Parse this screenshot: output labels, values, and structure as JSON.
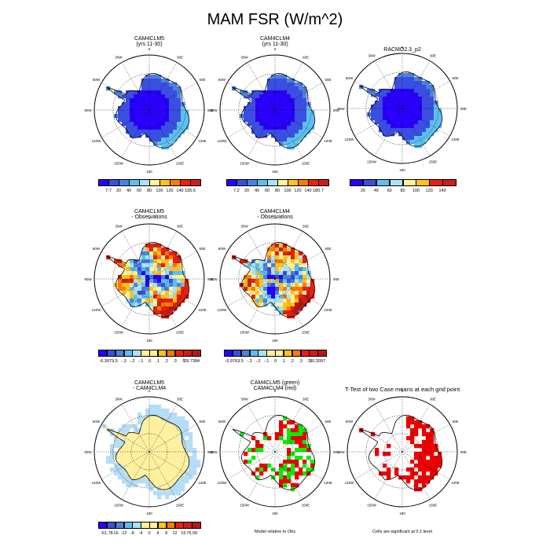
{
  "title": "MAM FSR (W/m^2)",
  "colors": {
    "abs_scale": [
      "#2a00ff",
      "#3a4ee0",
      "#4a82e0",
      "#5cc0ee",
      "#a8e2f8",
      "#fff099",
      "#ffc020",
      "#ff7a00",
      "#e82010",
      "#c81e1e"
    ],
    "diff_scale": [
      "#2a00ff",
      "#3a4ee0",
      "#4a82e0",
      "#5cc0ee",
      "#a8e2f8",
      "#fff099",
      "#ffc020",
      "#ff7a00",
      "#e82010",
      "#c81e1e",
      "#b51818"
    ],
    "cam5": "#00ee00",
    "cam4": "#ee0000",
    "land": "#fff0a0",
    "ocean_diff": "#b5ddf6"
  },
  "lon_labels": [
    "0",
    "30E",
    "60E",
    "90E",
    "120E",
    "150E",
    "180",
    "150W",
    "120W",
    "90W",
    "60W",
    "30W"
  ],
  "panels": [
    {
      "id": "p1",
      "title1": "CAM4CLM5",
      "title2": "(yrs 11-30)",
      "kind": "abs",
      "variant": "cam5",
      "cbar": [
        "7.7",
        "20",
        "40",
        "60",
        "80",
        "100",
        "120",
        "140",
        "195.6"
      ]
    },
    {
      "id": "p2",
      "title1": "CAM4CLM4",
      "title2": "(yrs 11-30)",
      "kind": "abs",
      "variant": "cam4",
      "cbar": [
        "7.2",
        "20",
        "40",
        "60",
        "80",
        "100",
        "120",
        "140",
        "180.7"
      ]
    },
    {
      "id": "p3",
      "title1": "RACMO2.3_p2",
      "title2": "",
      "kind": "abs",
      "variant": "obs",
      "cbar": [
        "20",
        "40",
        "60",
        "80",
        "100",
        "120",
        "140"
      ]
    },
    {
      "id": "p4",
      "title1": "CAM4CLM5",
      "title2": "- Observations",
      "kind": "diff",
      "variant": "d5",
      "cbar": [
        "-6.3073",
        "-.5",
        "-.3",
        "-.2",
        "-.1",
        ".0",
        ".1",
        ".2",
        ".3",
        ".5",
        "29.7384"
      ]
    },
    {
      "id": "p5",
      "title1": "CAM4CLM4",
      "title2": "- Observations",
      "kind": "diff",
      "variant": "d4",
      "cbar": [
        "-5.9762",
        "-.5",
        "-.3",
        "-.2",
        "-.1",
        ".0",
        ".1",
        ".2",
        ".3",
        ".5",
        "30.2097"
      ]
    },
    {
      "id": "p7",
      "title1": "CAM4CLM5",
      "title2": "- CAM4CLM4",
      "kind": "mdiff",
      "variant": "m",
      "cbar": [
        "-61.78",
        "-16",
        "-12",
        "-8",
        "-4",
        "0",
        "4",
        "8",
        "12",
        "16",
        "76.99"
      ]
    },
    {
      "id": "p8",
      "title1": "CAM4CLM5 (green)",
      "title2": "CAM4CLM4 (red)",
      "kind": "rel",
      "variant": "rel",
      "note": "Model relative to Obs"
    },
    {
      "id": "p9",
      "title1": "T-Test of two Case means at each grid point",
      "title2": "",
      "kind": "ttest",
      "variant": "tt",
      "note": "Cells are significant at 0.1 level"
    }
  ]
}
